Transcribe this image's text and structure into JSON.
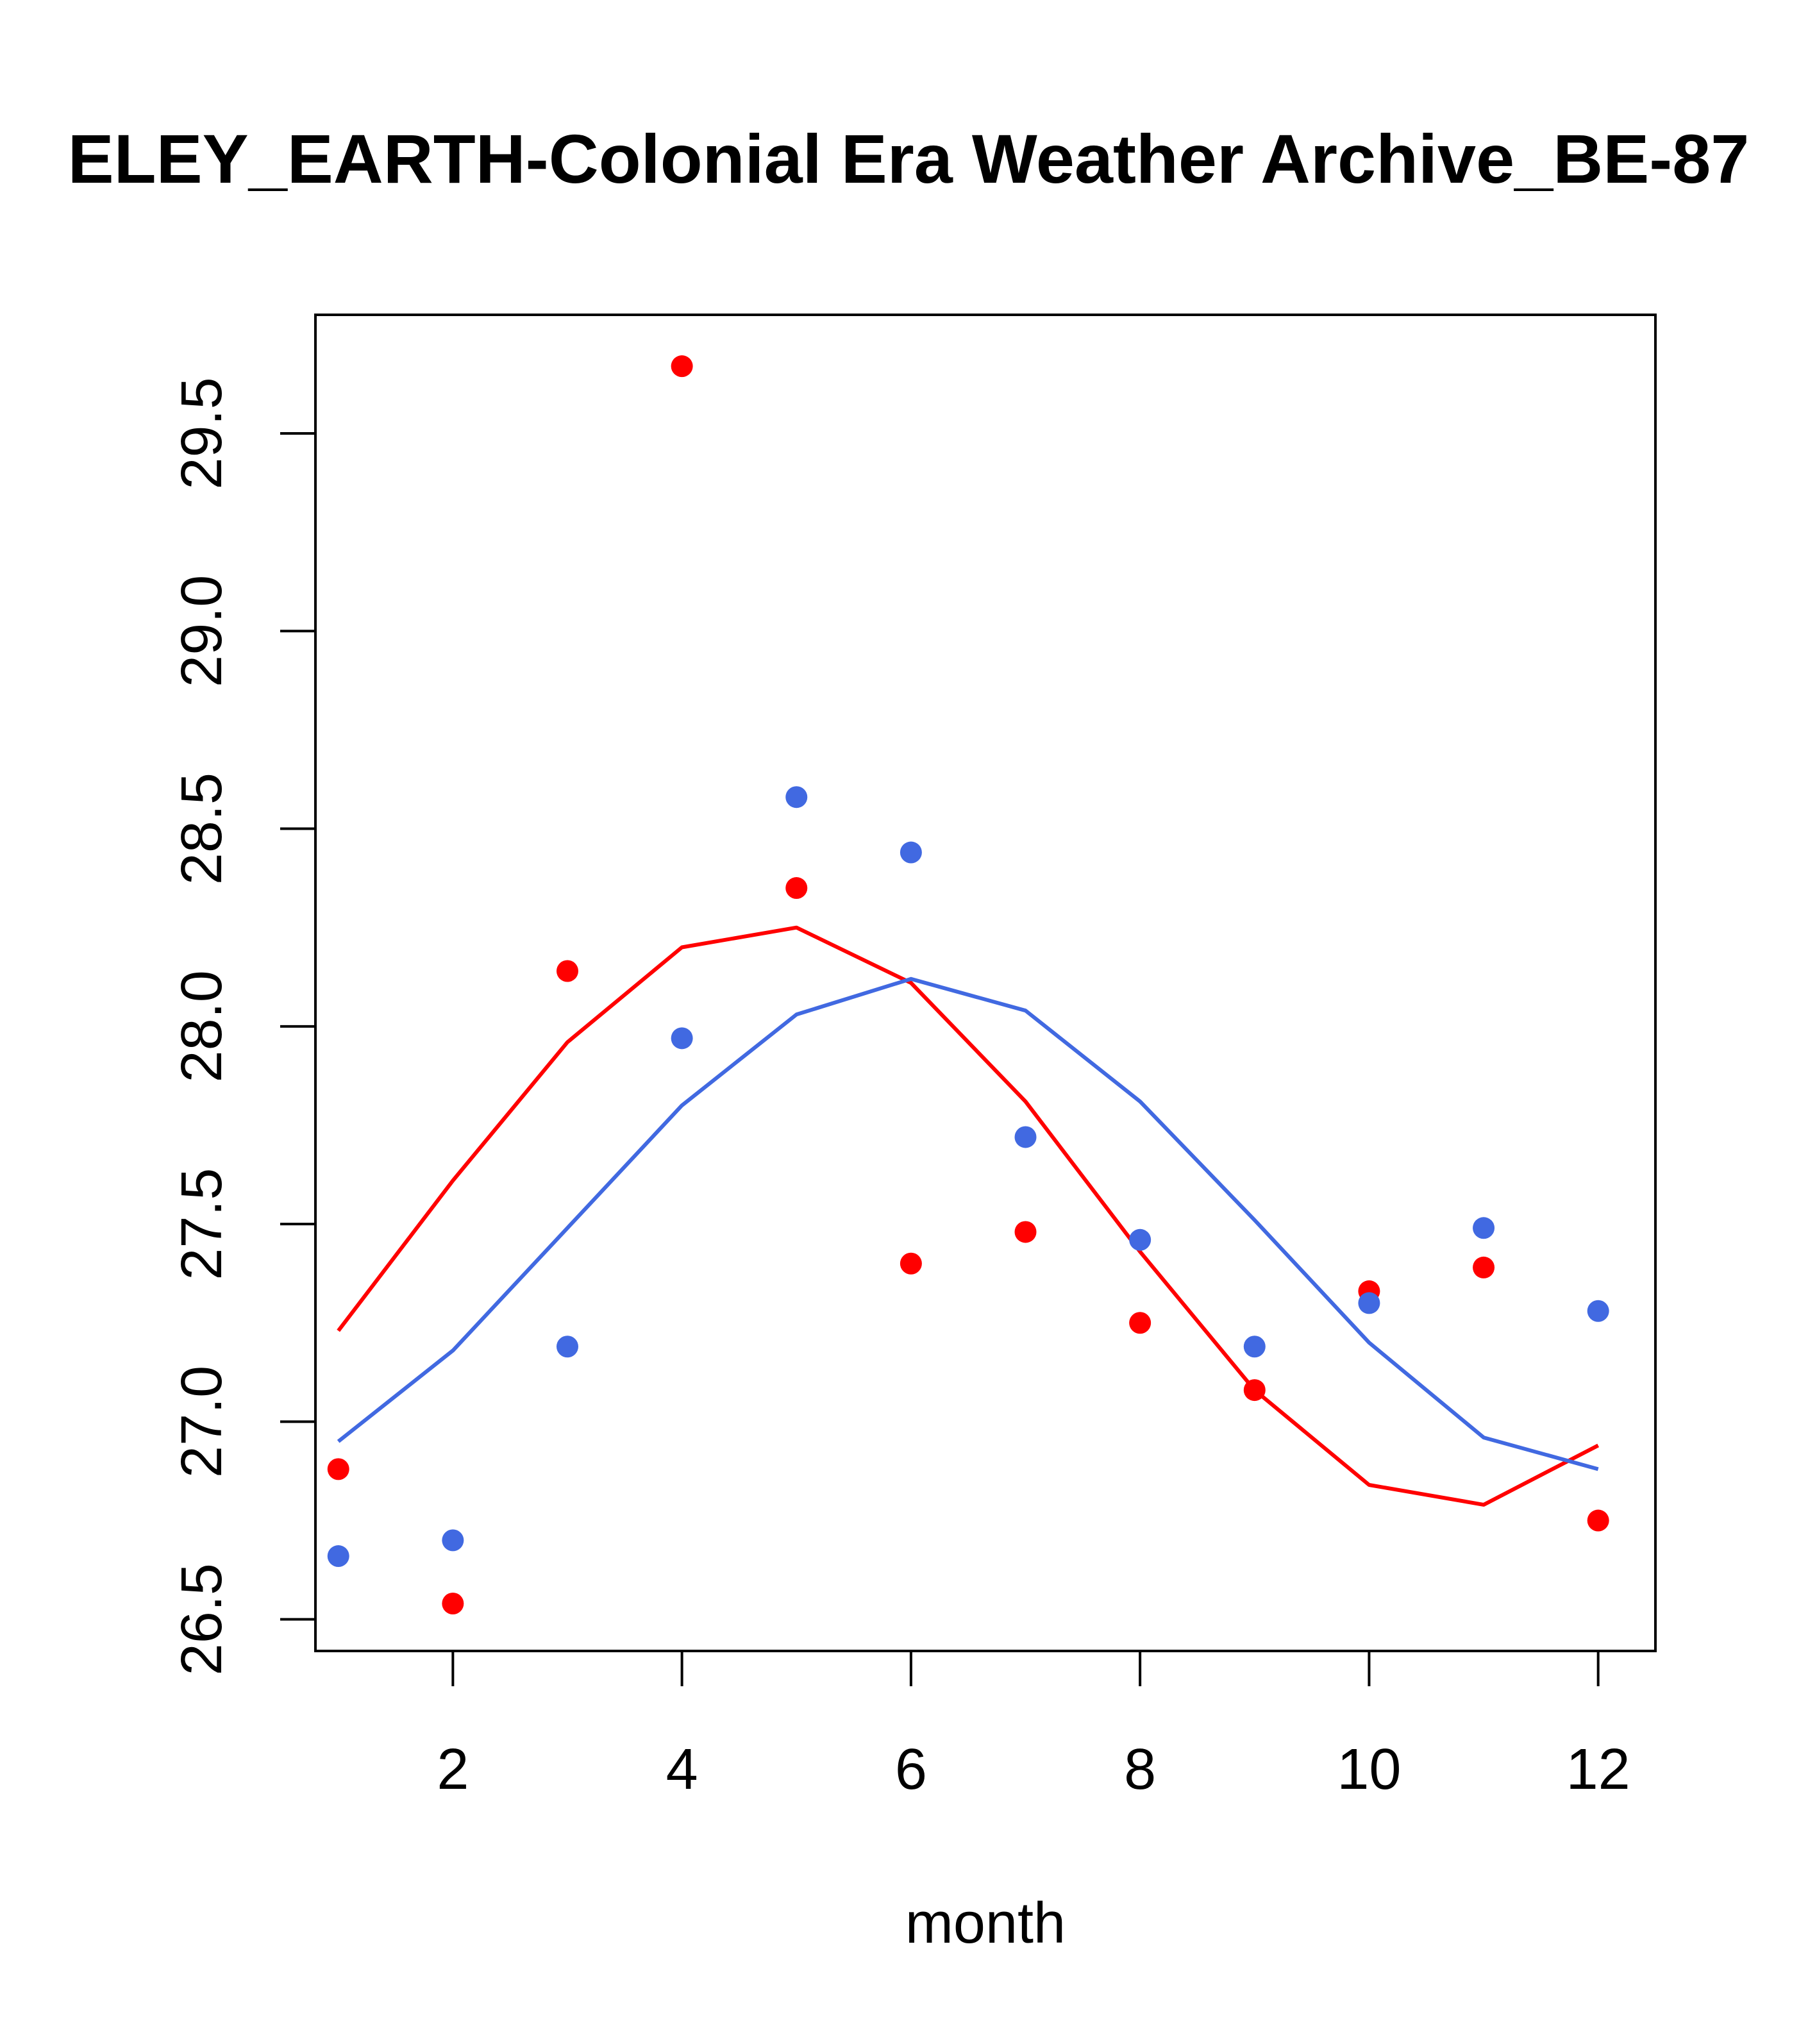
{
  "chart_data": {
    "type": "scatter",
    "title": "ELEY_EARTH-Colonial Era Weather Archive_BE-87",
    "xlabel": "month",
    "ylabel": "",
    "xlim": [
      0.8,
      12.5
    ],
    "ylim": [
      26.42,
      29.8
    ],
    "xticks": [
      2,
      4,
      6,
      8,
      10,
      12
    ],
    "yticks": [
      26.5,
      27.0,
      27.5,
      28.0,
      28.5,
      29.0,
      29.5
    ],
    "xtick_labels": [
      "2",
      "4",
      "6",
      "8",
      "10",
      "12"
    ],
    "ytick_labels": [
      "26.5",
      "27.0",
      "27.5",
      "28.0",
      "28.5",
      "29.0",
      "29.5"
    ],
    "grid": false,
    "series": [
      {
        "color": "#ff0000",
        "points_x": [
          1,
          2,
          3,
          4,
          5,
          6,
          7,
          8,
          9,
          10,
          11,
          12
        ],
        "points_y": [
          26.88,
          26.54,
          28.14,
          29.67,
          28.35,
          27.4,
          27.48,
          27.25,
          27.08,
          27.33,
          27.39,
          26.75
        ],
        "curve_x": [
          1,
          2,
          3,
          4,
          5,
          6,
          7,
          8,
          9,
          10,
          11,
          12
        ],
        "curve_y": [
          27.23,
          27.61,
          27.96,
          28.2,
          28.25,
          28.11,
          27.81,
          27.43,
          27.08,
          26.84,
          26.79,
          26.94
        ]
      },
      {
        "color": "#4169e1",
        "points_x": [
          1,
          2,
          3,
          4,
          5,
          6,
          7,
          8,
          9,
          10,
          11,
          12
        ],
        "points_y": [
          26.66,
          26.7,
          27.19,
          27.97,
          28.58,
          28.44,
          27.72,
          27.46,
          27.19,
          27.3,
          27.49,
          27.28
        ],
        "curve_x": [
          1,
          2,
          3,
          4,
          5,
          6,
          7,
          8,
          9,
          10,
          11,
          12
        ],
        "curve_y": [
          26.95,
          27.18,
          27.49,
          27.8,
          28.03,
          28.12,
          28.04,
          27.81,
          27.51,
          27.2,
          26.96,
          26.88
        ]
      }
    ]
  }
}
